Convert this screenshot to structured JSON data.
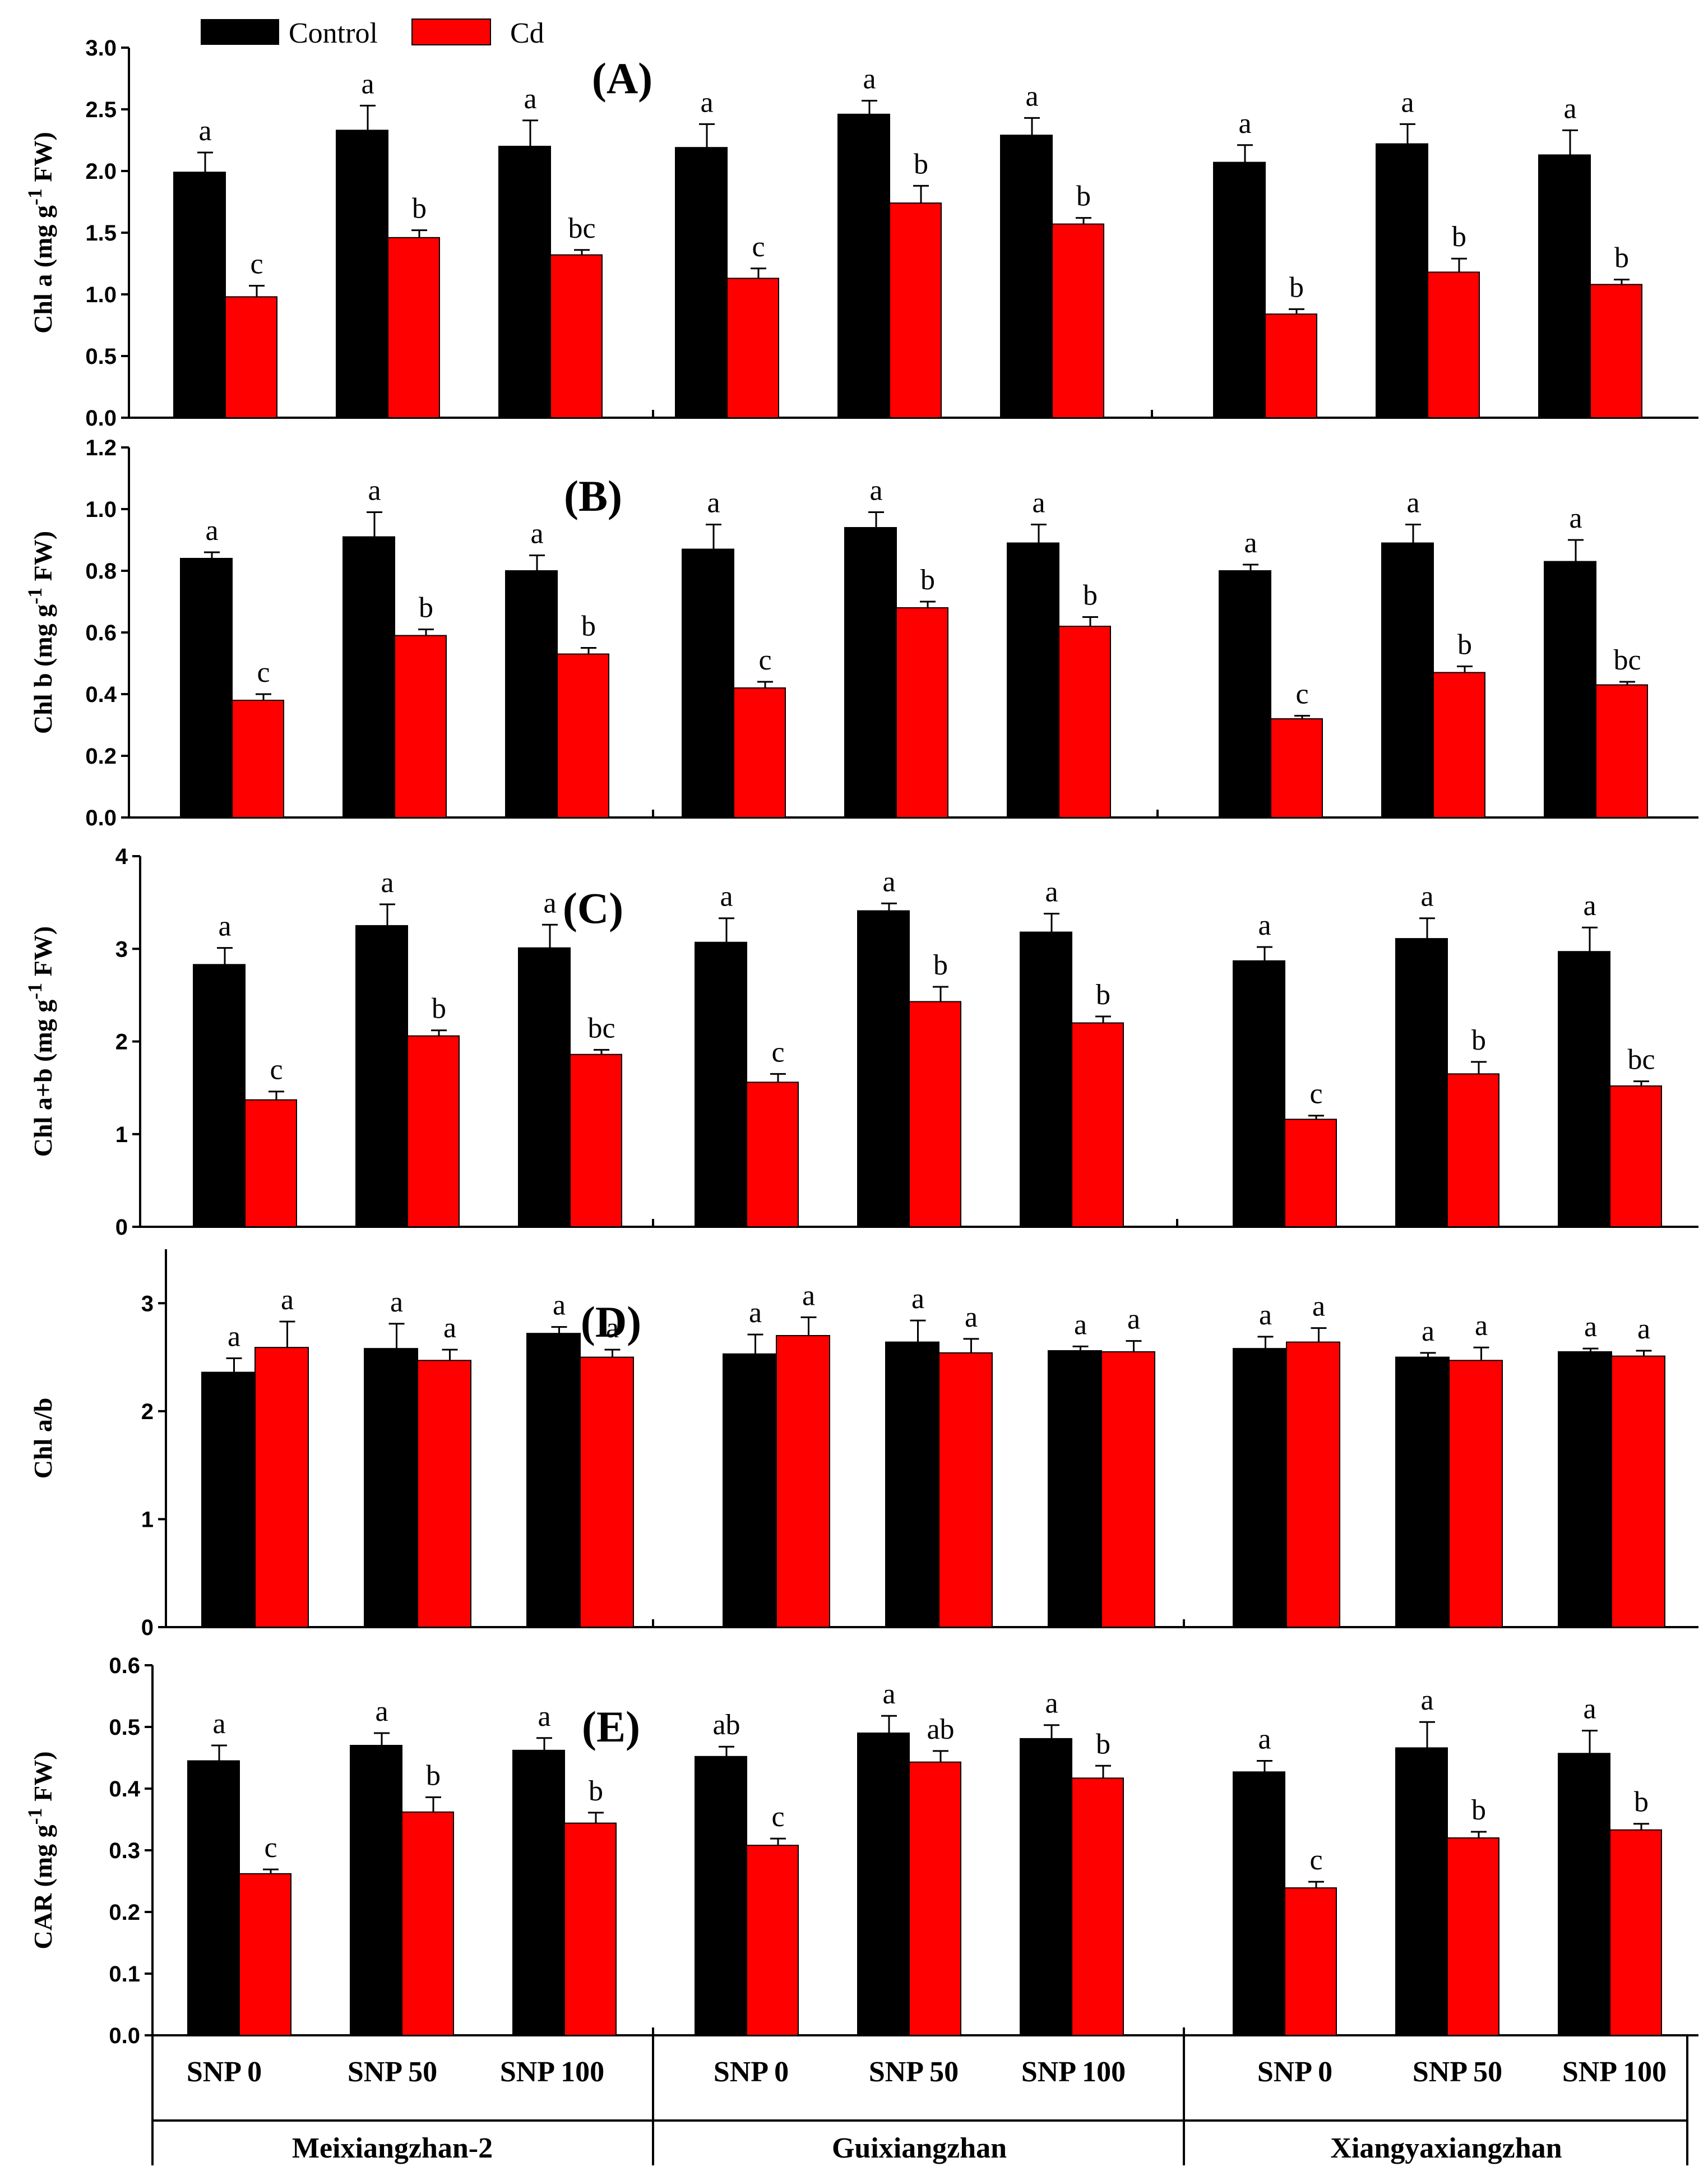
{
  "legend": {
    "items": [
      {
        "name": "Control",
        "color": "#000000"
      },
      {
        "name": "Cd",
        "color": "#ff0000"
      }
    ]
  },
  "x_axis": {
    "categories": [
      "SNP 0",
      "SNP 50",
      "SNP 100"
    ],
    "cultivars": [
      "Meixiangzhan-2",
      "Guixiangzhan",
      "Xiangyaxiangzhan"
    ]
  },
  "chart_data": [
    {
      "type": "bar",
      "panel": "(A)",
      "ylabel": "Chl a (mg g",
      "ylabel_sup": "-1",
      "ylabel_tail": " FW)",
      "ylim": [
        0,
        3.0
      ],
      "yticks": [
        0.0,
        0.5,
        1.0,
        1.5,
        2.0,
        2.5,
        3.0
      ],
      "ytick_labels": [
        "0.0",
        "0.5",
        "1.0",
        "1.5",
        "2.0",
        "2.5",
        "3.0"
      ],
      "series": [
        {
          "name": "Control",
          "values": [
            1.99,
            2.33,
            2.2,
            2.19,
            2.46,
            2.29,
            2.07,
            2.22,
            2.13
          ],
          "errors": [
            0.16,
            0.2,
            0.21,
            0.19,
            0.11,
            0.14,
            0.14,
            0.16,
            0.2
          ],
          "sig": [
            "a",
            "a",
            "a",
            "a",
            "a",
            "a",
            "a",
            "a",
            "a"
          ]
        },
        {
          "name": "Cd",
          "values": [
            0.98,
            1.46,
            1.32,
            1.13,
            1.74,
            1.57,
            0.84,
            1.18,
            1.08
          ],
          "errors": [
            0.09,
            0.06,
            0.04,
            0.08,
            0.14,
            0.05,
            0.04,
            0.11,
            0.04
          ],
          "sig": [
            "c",
            "b",
            "bc",
            "c",
            "b",
            "b",
            "b",
            "b",
            "b"
          ]
        }
      ]
    },
    {
      "type": "bar",
      "panel": "(B)",
      "ylabel": "Chl b (mg g",
      "ylabel_sup": "-1",
      "ylabel_tail": " FW)",
      "ylim": [
        0,
        1.2
      ],
      "yticks": [
        0.0,
        0.2,
        0.4,
        0.6,
        0.8,
        1.0,
        1.2
      ],
      "ytick_labels": [
        "0.0",
        "0.2",
        "0.4",
        "0.6",
        "0.8",
        "1.0",
        "1.2"
      ],
      "series": [
        {
          "name": "Control",
          "values": [
            0.84,
            0.91,
            0.8,
            0.87,
            0.94,
            0.89,
            0.8,
            0.89,
            0.83
          ],
          "errors": [
            0.02,
            0.08,
            0.05,
            0.08,
            0.05,
            0.06,
            0.02,
            0.06,
            0.07
          ],
          "sig": [
            "a",
            "a",
            "a",
            "a",
            "a",
            "a",
            "a",
            "a",
            "a"
          ]
        },
        {
          "name": "Cd",
          "values": [
            0.38,
            0.59,
            0.53,
            0.42,
            0.68,
            0.62,
            0.32,
            0.47,
            0.43
          ],
          "errors": [
            0.02,
            0.02,
            0.02,
            0.02,
            0.02,
            0.03,
            0.01,
            0.02,
            0.01
          ],
          "sig": [
            "c",
            "b",
            "b",
            "c",
            "b",
            "b",
            "c",
            "b",
            "bc"
          ]
        }
      ]
    },
    {
      "type": "bar",
      "panel": "(C)",
      "ylabel": "Chl a+b (mg g",
      "ylabel_sup": "-1",
      "ylabel_tail": " FW)",
      "ylim": [
        0,
        4
      ],
      "yticks": [
        0,
        1,
        2,
        3,
        4
      ],
      "ytick_labels": [
        "0",
        "1",
        "2",
        "3",
        "4"
      ],
      "series": [
        {
          "name": "Control",
          "values": [
            2.83,
            3.25,
            3.01,
            3.07,
            3.41,
            3.18,
            2.87,
            3.11,
            2.97
          ],
          "errors": [
            0.18,
            0.23,
            0.25,
            0.26,
            0.08,
            0.2,
            0.15,
            0.22,
            0.26
          ],
          "sig": [
            "a",
            "a",
            "a",
            "a",
            "a",
            "a",
            "a",
            "a",
            "a"
          ]
        },
        {
          "name": "Cd",
          "values": [
            1.37,
            2.06,
            1.86,
            1.56,
            2.43,
            2.2,
            1.16,
            1.65,
            1.52
          ],
          "errors": [
            0.09,
            0.06,
            0.05,
            0.09,
            0.16,
            0.07,
            0.04,
            0.13,
            0.05
          ],
          "sig": [
            "c",
            "b",
            "bc",
            "c",
            "b",
            "b",
            "c",
            "b",
            "bc"
          ]
        }
      ]
    },
    {
      "type": "bar",
      "panel": "(D)",
      "ylabel": "Chl a/b",
      "ylabel_sup": "",
      "ylabel_tail": "",
      "ylim": [
        0,
        3.5
      ],
      "yticks": [
        0,
        1,
        2,
        3
      ],
      "ytick_labels": [
        "0",
        "1",
        "2",
        "3"
      ],
      "series": [
        {
          "name": "Control",
          "values": [
            2.36,
            2.58,
            2.72,
            2.53,
            2.64,
            2.56,
            2.58,
            2.5,
            2.55
          ],
          "errors": [
            0.13,
            0.23,
            0.06,
            0.18,
            0.2,
            0.04,
            0.11,
            0.04,
            0.03
          ],
          "sig": [
            "a",
            "a",
            "a",
            "a",
            "a",
            "a",
            "a",
            "a",
            "a"
          ]
        },
        {
          "name": "Cd",
          "values": [
            2.59,
            2.47,
            2.5,
            2.7,
            2.54,
            2.55,
            2.64,
            2.47,
            2.51
          ],
          "errors": [
            0.24,
            0.1,
            0.07,
            0.17,
            0.13,
            0.1,
            0.13,
            0.12,
            0.05
          ],
          "sig": [
            "a",
            "a",
            "a",
            "a",
            "a",
            "a",
            "a",
            "a",
            "a"
          ]
        }
      ]
    },
    {
      "type": "bar",
      "panel": "(E)",
      "ylabel": "CAR (mg g",
      "ylabel_sup": "-1",
      "ylabel_tail": " FW)",
      "ylim": [
        0,
        0.6
      ],
      "yticks": [
        0.0,
        0.1,
        0.2,
        0.3,
        0.4,
        0.5,
        0.6
      ],
      "ytick_labels": [
        "0.0",
        "0.1",
        "0.2",
        "0.3",
        "0.4",
        "0.5",
        "0.6"
      ],
      "series": [
        {
          "name": "Control",
          "values": [
            0.445,
            0.47,
            0.462,
            0.452,
            0.49,
            0.481,
            0.427,
            0.466,
            0.457
          ],
          "errors": [
            0.025,
            0.02,
            0.02,
            0.016,
            0.028,
            0.022,
            0.018,
            0.042,
            0.037
          ],
          "sig": [
            "a",
            "a",
            "a",
            "ab",
            "a",
            "a",
            "a",
            "a",
            "a"
          ]
        },
        {
          "name": "Cd",
          "values": [
            0.262,
            0.362,
            0.344,
            0.308,
            0.443,
            0.417,
            0.239,
            0.32,
            0.333
          ],
          "errors": [
            0.007,
            0.024,
            0.017,
            0.011,
            0.018,
            0.02,
            0.01,
            0.01,
            0.01
          ],
          "sig": [
            "c",
            "b",
            "b",
            "c",
            "ab",
            "b",
            "c",
            "b",
            "b"
          ]
        }
      ]
    }
  ]
}
